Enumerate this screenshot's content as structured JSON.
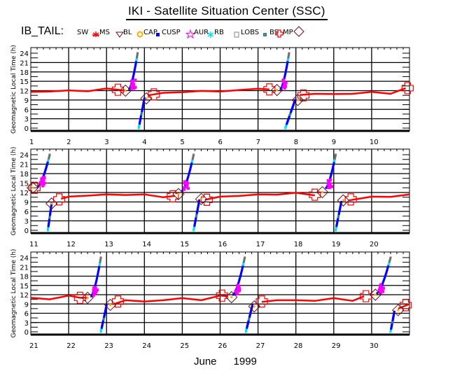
{
  "title": "IKI - Satellite Situation Center (SSC)",
  "legend": {
    "label": "IB_TAIL:",
    "items": [
      {
        "name": "SW",
        "symbol": "none",
        "color": "#000000"
      },
      {
        "name": "MS",
        "symbol": "star-burst",
        "color": "#ff0000"
      },
      {
        "name": "BL",
        "symbol": "triangle-down",
        "color": "#6b0f1a"
      },
      {
        "name": "CAP",
        "symbol": "circle-ring",
        "color": "#ffaa00"
      },
      {
        "name": "CUSP",
        "symbol": "dot",
        "color": "#0000ff"
      },
      {
        "name": "AUR",
        "symbol": "star",
        "color": "#ff00ff"
      },
      {
        "name": "RB",
        "symbol": "asterisk",
        "color": "#00e5ee"
      },
      {
        "name": "LOBS",
        "symbol": "square",
        "color": "#808080"
      },
      {
        "name": "BS",
        "symbol": "small-square",
        "color": "#2f7f8f"
      },
      {
        "name": "MP",
        "symbol": "cross",
        "color": "#ff0000"
      },
      {
        "name": "",
        "symbol": "diamond",
        "color": "#6b0f1a"
      }
    ]
  },
  "footer": {
    "month": "June",
    "year": "1999"
  },
  "colors": {
    "sw": "#ff0000",
    "cusp": "#0000ff",
    "aur": "#ff00ff",
    "rb": "#00e5ee",
    "lobs": "#707070",
    "bs": "#2f7f8f",
    "mp": "#ff0000",
    "diamond": "#6b0f1a",
    "cap": "#ffaa00"
  },
  "chart_data": [
    {
      "type": "scatter",
      "panel": "top",
      "ylabel": "Geomagnetic Local Time (h)",
      "ylim": [
        0,
        24
      ],
      "yticks": [
        0,
        3,
        6,
        9,
        12,
        15,
        18,
        21,
        24
      ],
      "xlim": [
        1,
        11
      ],
      "xticks": [
        "1",
        "2",
        "3",
        "4",
        "5",
        "6",
        "7",
        "8",
        "9",
        "10"
      ],
      "grid": true,
      "sw_track": [
        [
          1,
          11.6
        ],
        [
          1.5,
          11.7
        ],
        [
          2,
          12.1
        ],
        [
          2.5,
          11.8
        ],
        [
          3,
          12.7
        ],
        [
          3.3,
          12.3
        ],
        [
          3.5,
          12.0
        ]
      ],
      "sw_track_2": [
        [
          4.1,
          10.5
        ],
        [
          4.5,
          11.3
        ],
        [
          5,
          11.5
        ],
        [
          5.5,
          11.9
        ],
        [
          6,
          11.7
        ],
        [
          6.5,
          12.2
        ],
        [
          7,
          12.6
        ],
        [
          7.3,
          12.4
        ]
      ],
      "sw_track_3": [
        [
          8.1,
          10.6
        ],
        [
          8.5,
          11.0
        ],
        [
          9,
          10.9
        ],
        [
          9.5,
          11.0
        ],
        [
          10,
          11.6
        ],
        [
          10.5,
          11.0
        ],
        [
          10.9,
          12.8
        ]
      ],
      "crossings": [
        {
          "type": "MP",
          "x": 3.3,
          "y": 12.3
        },
        {
          "type": "BL",
          "x": 3.5,
          "y": 12.0
        },
        {
          "type": "MP",
          "x": 4.25,
          "y": 10.8
        },
        {
          "type": "BL",
          "x": 4.05,
          "y": 9.5
        },
        {
          "type": "MP",
          "x": 7.3,
          "y": 12.4
        },
        {
          "type": "BL",
          "x": 7.5,
          "y": 12.2
        },
        {
          "type": "MP",
          "x": 8.2,
          "y": 10.5
        },
        {
          "type": "BL",
          "x": 8.05,
          "y": 9.0
        },
        {
          "type": "MP",
          "x": 10.95,
          "y": 12.8
        }
      ],
      "orbit_segments": [
        {
          "x0": 3.6,
          "y0": 12.5,
          "x1": 3.82,
          "y1": 24
        },
        {
          "x0": 3.85,
          "y0": 0,
          "x1": 4.0,
          "y1": 9.5
        },
        {
          "x0": 7.6,
          "y0": 12.5,
          "x1": 7.82,
          "y1": 24
        },
        {
          "x0": 7.72,
          "y0": 0,
          "x1": 7.98,
          "y1": 9.0
        }
      ]
    },
    {
      "type": "scatter",
      "panel": "middle",
      "ylabel": "Geomagnetic Local Time (h)",
      "ylim": [
        0,
        24
      ],
      "yticks": [
        0,
        3,
        6,
        9,
        12,
        15,
        18,
        21,
        24
      ],
      "xlim": [
        11,
        21
      ],
      "xticks": [
        "11",
        "12",
        "13",
        "14",
        "15",
        "16",
        "17",
        "18",
        "19",
        "20"
      ],
      "grid": true,
      "sw_track": [
        [
          11.8,
          10.0
        ],
        [
          12,
          10.7
        ],
        [
          12.5,
          11.0
        ],
        [
          13,
          11.4
        ],
        [
          13.5,
          11.2
        ],
        [
          14,
          11.4
        ],
        [
          14.5,
          10.5
        ],
        [
          14.8,
          10.9
        ]
      ],
      "sw_track_2": [
        [
          15.6,
          9.7
        ],
        [
          16,
          10.7
        ],
        [
          16.5,
          10.9
        ],
        [
          17,
          11.4
        ],
        [
          17.5,
          11.3
        ],
        [
          18,
          11.9
        ],
        [
          18.5,
          11.1
        ]
      ],
      "sw_track_3": [
        [
          19.4,
          9.5
        ],
        [
          20,
          10.7
        ],
        [
          20.5,
          10.6
        ],
        [
          21,
          11.4
        ]
      ],
      "crossings": [
        {
          "type": "MP",
          "x": 11.1,
          "y": 13.5
        },
        {
          "type": "BL",
          "x": 11.05,
          "y": 13.5
        },
        {
          "type": "MP",
          "x": 11.75,
          "y": 9.8
        },
        {
          "type": "BL",
          "x": 11.55,
          "y": 8.5
        },
        {
          "type": "MP",
          "x": 14.75,
          "y": 10.8
        },
        {
          "type": "BL",
          "x": 14.9,
          "y": 11.5
        },
        {
          "type": "MP",
          "x": 15.65,
          "y": 9.7
        },
        {
          "type": "BL",
          "x": 15.5,
          "y": 9.9
        },
        {
          "type": "MP",
          "x": 18.5,
          "y": 11.3
        },
        {
          "type": "BL",
          "x": 18.7,
          "y": 12.1
        },
        {
          "type": "MP",
          "x": 19.45,
          "y": 9.8
        },
        {
          "type": "BL",
          "x": 19.25,
          "y": 9.5
        }
      ],
      "orbit_segments": [
        {
          "x0": 11.2,
          "y0": 14,
          "x1": 11.5,
          "y1": 24
        },
        {
          "x0": 11.45,
          "y0": 0,
          "x1": 11.55,
          "y1": 8.5
        },
        {
          "x0": 15.0,
          "y0": 12.5,
          "x1": 15.3,
          "y1": 24
        },
        {
          "x0": 15.3,
          "y0": 0,
          "x1": 15.45,
          "y1": 9.5
        },
        {
          "x0": 18.8,
          "y0": 13.5,
          "x1": 19.05,
          "y1": 24
        },
        {
          "x0": 19.05,
          "y0": 0,
          "x1": 19.2,
          "y1": 9
        }
      ]
    },
    {
      "type": "scatter",
      "panel": "bottom",
      "ylabel": "Geomagnetic Local Time (h)",
      "ylim": [
        0,
        24
      ],
      "yticks": [
        0,
        3,
        6,
        9,
        12,
        15,
        18,
        21,
        24
      ],
      "xlim": [
        21,
        31
      ],
      "xticks": [
        "21",
        "22",
        "23",
        "24",
        "25",
        "26",
        "27",
        "28",
        "29",
        "30"
      ],
      "grid": true,
      "sw_track": [
        [
          21,
          11.0
        ],
        [
          21.5,
          10.5
        ],
        [
          22,
          11.7
        ],
        [
          22.3,
          11.0
        ],
        [
          22.5,
          11.0
        ]
      ],
      "sw_track_2": [
        [
          23.2,
          9.0
        ],
        [
          23.5,
          10.2
        ],
        [
          24,
          9.8
        ],
        [
          24.5,
          10.2
        ],
        [
          25,
          10.9
        ],
        [
          25.5,
          10.2
        ],
        [
          26,
          11.7
        ],
        [
          26.2,
          11.5
        ]
      ],
      "sw_track_3": [
        [
          27.1,
          9.7
        ],
        [
          27.5,
          10.2
        ],
        [
          28,
          10.2
        ],
        [
          28.5,
          10.0
        ],
        [
          29,
          10.9
        ],
        [
          29.5,
          10.0
        ],
        [
          29.8,
          11.5
        ]
      ],
      "sw_track_4": [
        [
          30.7,
          7.5
        ],
        [
          31,
          9.0
        ]
      ],
      "crossings": [
        {
          "type": "MP",
          "x": 22.3,
          "y": 11.0
        },
        {
          "type": "BL",
          "x": 22.5,
          "y": 11.0
        },
        {
          "type": "MP",
          "x": 23.3,
          "y": 9.8
        },
        {
          "type": "BL",
          "x": 23.1,
          "y": 8.7
        },
        {
          "type": "MP",
          "x": 26.05,
          "y": 11.7
        },
        {
          "type": "BL",
          "x": 26.3,
          "y": 11.2
        },
        {
          "type": "MP",
          "x": 27.1,
          "y": 9.8
        },
        {
          "type": "BL",
          "x": 26.9,
          "y": 8.2
        },
        {
          "type": "MP",
          "x": 29.85,
          "y": 11.5
        },
        {
          "type": "BL",
          "x": 30.1,
          "y": 12.0
        },
        {
          "type": "MP",
          "x": 30.9,
          "y": 8.6
        },
        {
          "type": "BL",
          "x": 30.7,
          "y": 7.0
        }
      ],
      "orbit_segments": [
        {
          "x0": 22.6,
          "y0": 11.5,
          "x1": 22.85,
          "y1": 24
        },
        {
          "x0": 22.85,
          "y0": 0,
          "x1": 23.0,
          "y1": 8.5
        },
        {
          "x0": 26.35,
          "y0": 12,
          "x1": 26.65,
          "y1": 24
        },
        {
          "x0": 26.68,
          "y0": 0,
          "x1": 26.85,
          "y1": 8.5
        },
        {
          "x0": 30.15,
          "y0": 12.5,
          "x1": 30.5,
          "y1": 24
        },
        {
          "x0": 30.5,
          "y0": 0,
          "x1": 30.6,
          "y1": 6.5
        }
      ]
    }
  ]
}
